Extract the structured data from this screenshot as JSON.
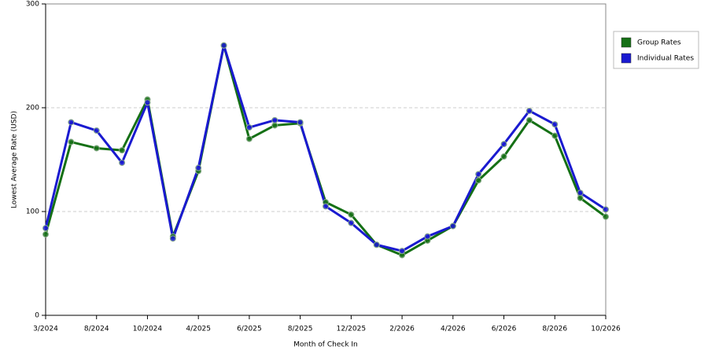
{
  "chart_data": {
    "type": "line",
    "x_label": "Month of Check In",
    "y_label": "Lowest Average Rate (USD)",
    "categories": [
      "3/2024",
      null,
      "8/2024",
      null,
      "10/2024",
      null,
      "4/2025",
      null,
      "6/2025",
      null,
      "8/2025",
      null,
      "12/2025",
      null,
      "2/2026",
      null,
      "4/2026",
      null,
      "6/2026",
      null,
      "8/2026",
      null,
      "10/2026"
    ],
    "series": [
      {
        "name": "Group Rates",
        "color": "#157015",
        "values": [
          78,
          167,
          161,
          159,
          208,
          76,
          139,
          260,
          170,
          183,
          185,
          109,
          97,
          68,
          58,
          72,
          86,
          130,
          153,
          188,
          173,
          113,
          95
        ]
      },
      {
        "name": "Individual Rates",
        "color": "#1a1ad0",
        "values": [
          84,
          186,
          178,
          147,
          205,
          74,
          142,
          260,
          181,
          188,
          186,
          105,
          89,
          68,
          62,
          76,
          86,
          136,
          165,
          197,
          184,
          118,
          102
        ]
      }
    ],
    "ylim": [
      0,
      300
    ],
    "yticks": [
      0,
      100,
      200,
      300
    ],
    "grid": true,
    "legend": "right"
  }
}
